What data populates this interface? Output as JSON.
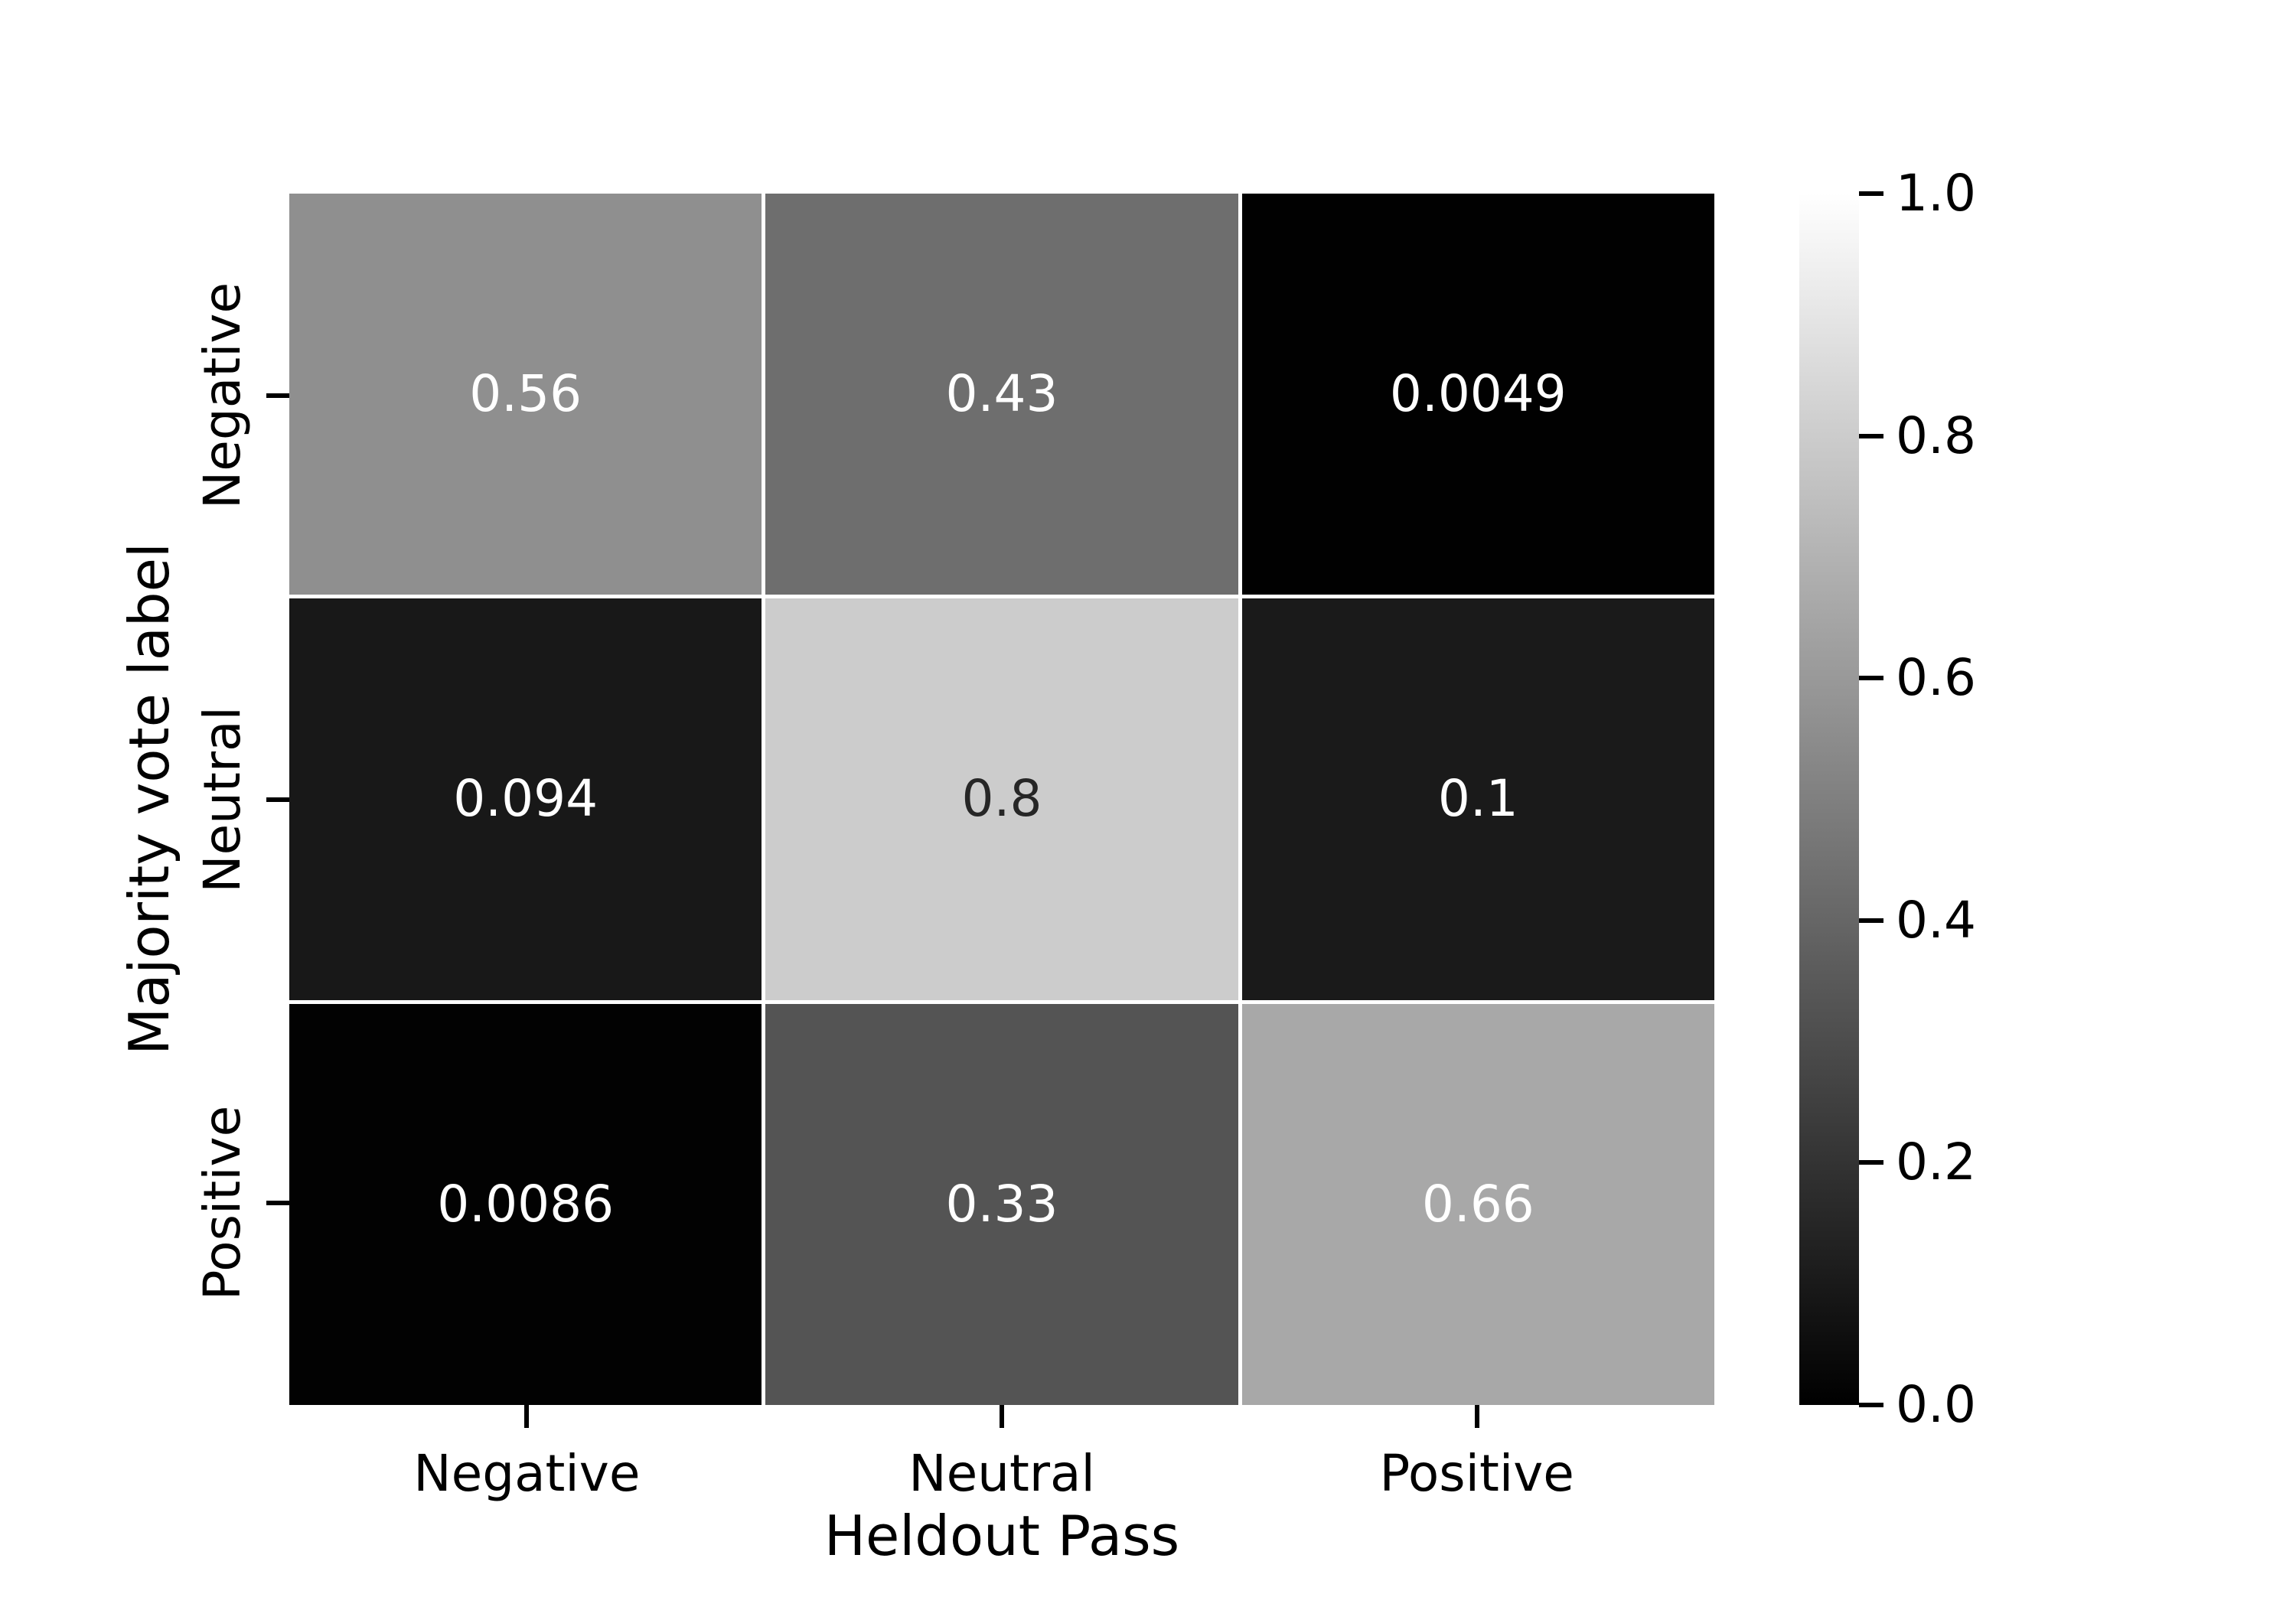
{
  "chart_data": {
    "type": "heatmap",
    "title": "",
    "xlabel": "Heldout Pass",
    "ylabel": "Majority vote label",
    "x_categories": [
      "Negative",
      "Neutral",
      "Positive"
    ],
    "y_categories": [
      "Negative",
      "Neutral",
      "Positive"
    ],
    "rows": [
      [
        0.56,
        0.43,
        0.0049
      ],
      [
        0.094,
        0.8,
        0.1
      ],
      [
        0.0086,
        0.33,
        0.66
      ]
    ],
    "cell_labels": [
      [
        "0.56",
        "0.43",
        "0.0049"
      ],
      [
        "0.094",
        "0.8",
        "0.1"
      ],
      [
        "0.0086",
        "0.33",
        "0.66"
      ]
    ],
    "colormap": "gray",
    "colormap_low_color": "#000000",
    "colormap_high_color": "#ffffff",
    "value_range": [
      0.0,
      1.0
    ],
    "annotation_light_text": "#ffffff",
    "annotation_dark_text": "#262626",
    "axis_text_color": "#000000",
    "background_color": "#ffffff",
    "grid_gap_color": "#ffffff",
    "legend_position": "right-colorbar",
    "colorbar_ticks": [
      "1.0",
      "0.8",
      "0.6",
      "0.4",
      "0.2",
      "0.0"
    ]
  }
}
